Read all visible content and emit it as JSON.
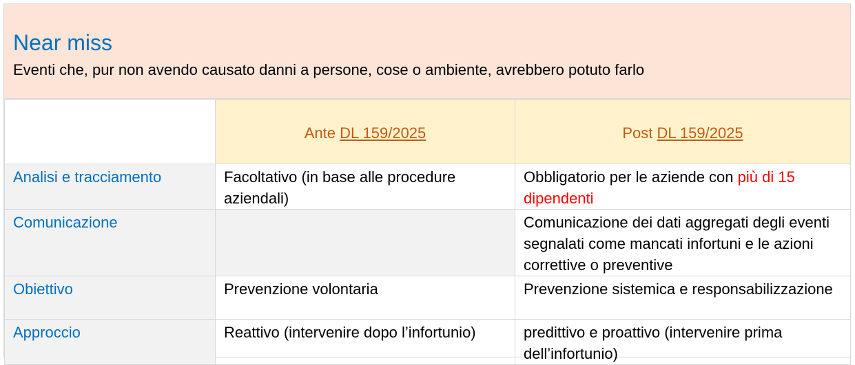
{
  "header": {
    "title": "Near miss",
    "subtitle": "Eventi che, pur non avendo causato danni a persone, cose o ambiente, avrebbero potuto farlo"
  },
  "columns": [
    {
      "prefix": "Ante ",
      "link": "DL 159/2025"
    },
    {
      "prefix": "Post ",
      "link": "DL 159/2025"
    }
  ],
  "rows": [
    {
      "label": "Analisi e tracciamento",
      "ante": "Facoltativo (in base alle procedure aziendali)",
      "post": "Obbligatorio per le aziende con ",
      "post_highlight": "più di 15 dipendenti"
    },
    {
      "label": "Comunicazione",
      "ante": "",
      "post": "Comunicazione dei dati aggregati degli eventi segnalati come mancati infortuni e le azioni correttive o preventive"
    },
    {
      "label": "Obiettivo",
      "ante": "Prevenzione volontaria",
      "post": "Prevenzione sistemica e responsabilizzazione"
    },
    {
      "label": "Approccio",
      "ante": "Reattivo (intervenire dopo l’infortunio)",
      "post": "predittivo e proattivo (intervenire prima dell’infortunio)"
    }
  ],
  "colors": {
    "header_bg": "#FCE4D6",
    "column_header_bg": "#FFF2CC",
    "accent_blue": "#0070C0",
    "column_text": "#C55A11",
    "highlight_red": "#FF0000"
  }
}
